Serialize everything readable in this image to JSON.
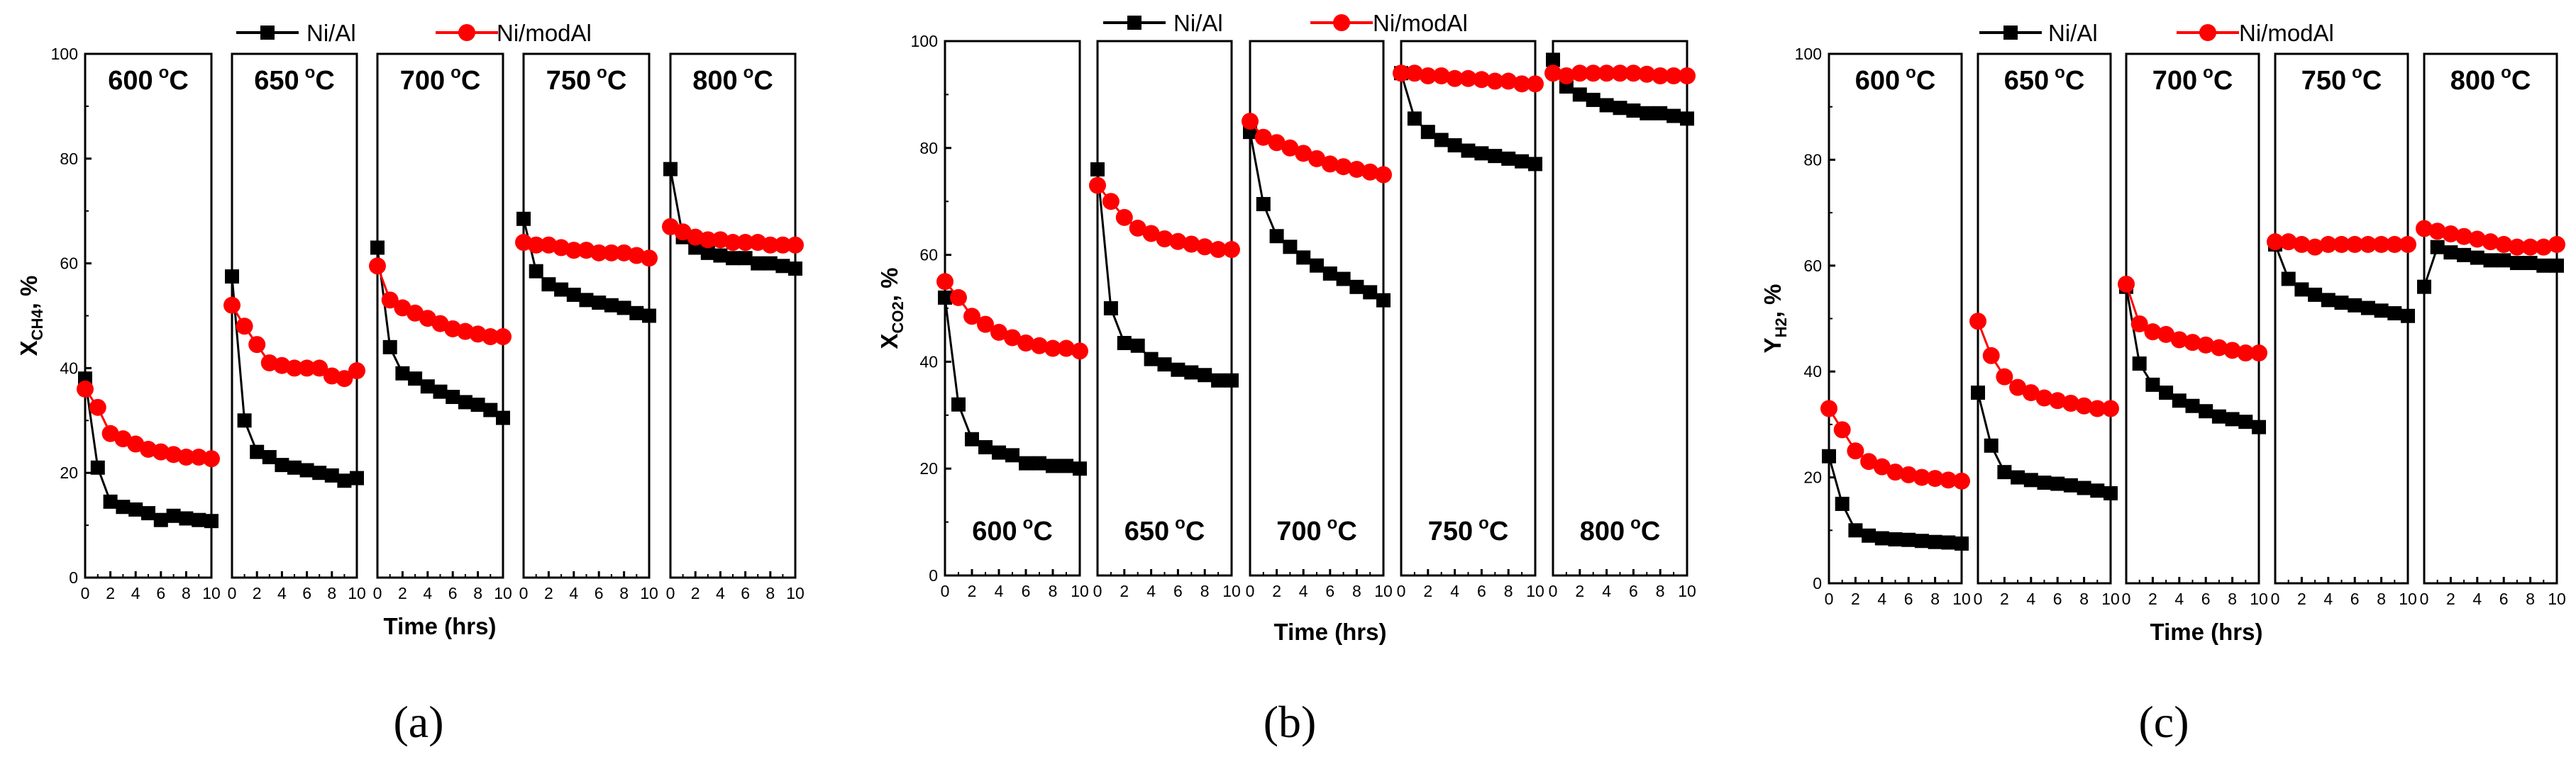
{
  "legend": {
    "series1": "Ni/Al",
    "series2": "Ni/modAl"
  },
  "colors": {
    "series1": "#000000",
    "series2": "#ff0000"
  },
  "xlabel": "Time (hrs)",
  "degree_symbol": "o",
  "chart_data": [
    {
      "type": "line",
      "panel": "a",
      "caption": "(a)",
      "ylabel": {
        "main": "X",
        "sub": "CH4",
        "suffix": ", %"
      },
      "ylim": [
        0,
        100
      ],
      "yticks": [
        "0",
        "20",
        "40",
        "60",
        "80",
        "100"
      ],
      "xlim": [
        0,
        10
      ],
      "xticks": [
        "0",
        "2",
        "4",
        "6",
        "8",
        "10"
      ],
      "temp_position": "top",
      "x": [
        0,
        1,
        2,
        3,
        4,
        5,
        6,
        7,
        8,
        9,
        10
      ],
      "subpanels": [
        {
          "temp": "600",
          "unit": "C",
          "series": [
            {
              "name": "Ni/Al",
              "values": [
                38,
                21,
                14.5,
                13.5,
                13,
                12.3,
                11,
                11.8,
                11.3,
                11,
                10.8
              ]
            },
            {
              "name": "Ni/modAl",
              "values": [
                36,
                32.5,
                27.5,
                26.5,
                25.5,
                24.5,
                24,
                23.5,
                23,
                23,
                22.7
              ]
            }
          ]
        },
        {
          "temp": "650",
          "unit": "C",
          "series": [
            {
              "name": "Ni/Al",
              "values": [
                57.5,
                30,
                24,
                23,
                21.5,
                21,
                20.5,
                20,
                19.5,
                18.5,
                19
              ]
            },
            {
              "name": "Ni/modAl",
              "values": [
                52,
                48,
                44.5,
                41,
                40.5,
                40,
                40,
                40,
                38.5,
                38,
                39.5
              ]
            }
          ]
        },
        {
          "temp": "700",
          "unit": "C",
          "series": [
            {
              "name": "Ni/Al",
              "values": [
                63,
                44,
                39,
                38,
                36.5,
                35.5,
                34.5,
                33.5,
                33,
                32,
                30.5
              ]
            },
            {
              "name": "Ni/modAl",
              "values": [
                59.5,
                53,
                51.5,
                50.5,
                49.5,
                48.5,
                47.5,
                47,
                46.5,
                46,
                46
              ]
            }
          ]
        },
        {
          "temp": "750",
          "unit": "C",
          "series": [
            {
              "name": "Ni/Al",
              "values": [
                68.5,
                58.5,
                56,
                55,
                54,
                53,
                52.5,
                52,
                51.5,
                50.5,
                50
              ]
            },
            {
              "name": "Ni/modAl",
              "values": [
                64,
                63.5,
                63.5,
                63,
                62.5,
                62.5,
                62,
                62,
                62,
                61.5,
                61
              ]
            }
          ]
        },
        {
          "temp": "800",
          "unit": "C",
          "series": [
            {
              "name": "Ni/Al",
              "values": [
                78,
                65,
                63,
                62,
                61.5,
                61,
                61,
                60,
                60,
                59.5,
                59
              ]
            },
            {
              "name": "Ni/modAl",
              "values": [
                67,
                66,
                65,
                64.5,
                64.5,
                64,
                64,
                64,
                63.5,
                63.5,
                63.5
              ]
            }
          ]
        }
      ]
    },
    {
      "type": "line",
      "panel": "b",
      "caption": "(b)",
      "ylabel": {
        "main": "X",
        "sub": "CO2",
        "suffix": ", %"
      },
      "ylim": [
        0,
        100
      ],
      "yticks": [
        "0",
        "20",
        "40",
        "60",
        "80",
        "100"
      ],
      "xlim": [
        0,
        10
      ],
      "xticks": [
        "0",
        "2",
        "4",
        "6",
        "8",
        "10"
      ],
      "temp_position": "bottom",
      "x": [
        0,
        1,
        2,
        3,
        4,
        5,
        6,
        7,
        8,
        9,
        10
      ],
      "subpanels": [
        {
          "temp": "600",
          "unit": "C",
          "series": [
            {
              "name": "Ni/Al",
              "values": [
                52,
                32,
                25.5,
                24,
                23,
                22.5,
                21,
                21,
                20.5,
                20.5,
                20
              ]
            },
            {
              "name": "Ni/modAl",
              "values": [
                55,
                52,
                48.5,
                47,
                45.5,
                44.5,
                43.5,
                43,
                42.5,
                42.5,
                42
              ]
            }
          ]
        },
        {
          "temp": "650",
          "unit": "C",
          "series": [
            {
              "name": "Ni/Al",
              "values": [
                76,
                50,
                43.5,
                43,
                40.5,
                39.5,
                38.5,
                38,
                37.5,
                36.5,
                36.5
              ]
            },
            {
              "name": "Ni/modAl",
              "values": [
                73,
                70,
                67,
                65,
                64,
                63,
                62.5,
                62,
                61.5,
                61,
                61
              ]
            }
          ]
        },
        {
          "temp": "700",
          "unit": "C",
          "series": [
            {
              "name": "Ni/Al",
              "values": [
                83,
                69.5,
                63.5,
                61.5,
                59.5,
                58,
                56.5,
                55.5,
                54,
                53,
                51.5
              ]
            },
            {
              "name": "Ni/modAl",
              "values": [
                85,
                82,
                81,
                80,
                79,
                78,
                77,
                76.5,
                76,
                75.5,
                75
              ]
            }
          ]
        },
        {
          "temp": "750",
          "unit": "C",
          "series": [
            {
              "name": "Ni/Al",
              "values": [
                94,
                85.5,
                83,
                81.5,
                80.5,
                79.5,
                79,
                78.5,
                78,
                77.5,
                77
              ]
            },
            {
              "name": "Ni/modAl",
              "values": [
                94,
                94,
                93.5,
                93.5,
                93,
                93,
                92.8,
                92.5,
                92.5,
                92,
                92
              ]
            }
          ]
        },
        {
          "temp": "800",
          "unit": "C",
          "series": [
            {
              "name": "Ni/Al",
              "values": [
                96.5,
                91.5,
                90,
                89,
                88,
                87.5,
                87,
                86.5,
                86.5,
                86,
                85.5
              ]
            },
            {
              "name": "Ni/modAl",
              "values": [
                94,
                93.5,
                94,
                94,
                94,
                94,
                94,
                93.8,
                93.5,
                93.5,
                93.5
              ]
            }
          ]
        }
      ]
    },
    {
      "type": "line",
      "panel": "c",
      "caption": "(c)",
      "ylabel": {
        "main": "Y",
        "sub": "H2",
        "suffix": ", %"
      },
      "ylim": [
        0,
        100
      ],
      "yticks": [
        "0",
        "20",
        "40",
        "60",
        "80",
        "100"
      ],
      "xlim": [
        0,
        10
      ],
      "xticks": [
        "0",
        "2",
        "4",
        "6",
        "8",
        "10"
      ],
      "temp_position": "top",
      "x": [
        0,
        1,
        2,
        3,
        4,
        5,
        6,
        7,
        8,
        9,
        10
      ],
      "subpanels": [
        {
          "temp": "600",
          "unit": "C",
          "series": [
            {
              "name": "Ni/Al",
              "values": [
                24,
                15,
                10,
                9,
                8.5,
                8.3,
                8.2,
                8,
                7.8,
                7.7,
                7.5
              ]
            },
            {
              "name": "Ni/modAl",
              "values": [
                33,
                29,
                25,
                23,
                22,
                21,
                20.5,
                20,
                19.8,
                19.5,
                19.3
              ]
            }
          ]
        },
        {
          "temp": "650",
          "unit": "C",
          "series": [
            {
              "name": "Ni/Al",
              "values": [
                36,
                26,
                21,
                20,
                19.5,
                19,
                18.8,
                18.5,
                18,
                17.5,
                17
              ]
            },
            {
              "name": "Ni/modAl",
              "values": [
                49.5,
                43,
                39,
                37,
                36,
                35,
                34.5,
                34,
                33.5,
                33,
                33
              ]
            }
          ]
        },
        {
          "temp": "700",
          "unit": "C",
          "series": [
            {
              "name": "Ni/Al",
              "values": [
                56,
                41.5,
                37.5,
                36,
                34.5,
                33.5,
                32.5,
                31.5,
                31,
                30.5,
                29.5
              ]
            },
            {
              "name": "Ni/modAl",
              "values": [
                56.5,
                49,
                47.5,
                47,
                46,
                45.5,
                45,
                44.5,
                44,
                43.5,
                43.5
              ]
            }
          ]
        },
        {
          "temp": "750",
          "unit": "C",
          "series": [
            {
              "name": "Ni/Al",
              "values": [
                64,
                57.5,
                55.5,
                54.5,
                53.5,
                53,
                52.5,
                52,
                51.5,
                51,
                50.5
              ]
            },
            {
              "name": "Ni/modAl",
              "values": [
                64.5,
                64.5,
                64,
                63.5,
                64,
                64,
                64,
                64,
                64,
                64,
                64
              ]
            }
          ]
        },
        {
          "temp": "800",
          "unit": "C",
          "series": [
            {
              "name": "Ni/Al",
              "values": [
                56,
                63.5,
                62.5,
                62,
                61.5,
                61,
                61,
                60.5,
                60.5,
                60,
                60
              ]
            },
            {
              "name": "Ni/modAl",
              "values": [
                67,
                66.5,
                66,
                65.5,
                65,
                64.5,
                64,
                63.5,
                63.5,
                63.5,
                64
              ]
            }
          ]
        }
      ]
    }
  ]
}
